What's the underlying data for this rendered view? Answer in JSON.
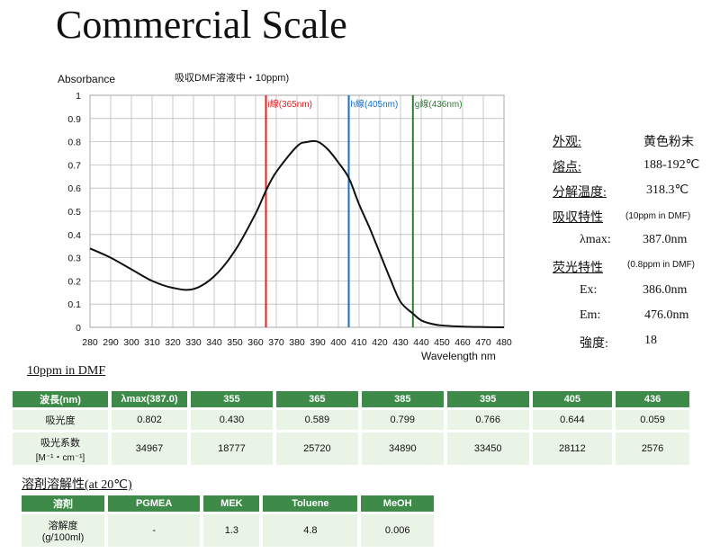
{
  "title": "Commercial Scale",
  "chart_data": {
    "type": "line",
    "title": "吸収DMF溶液中・10ppm)",
    "ylabel": "Absorbance",
    "xlabel": "Wavelength nm",
    "xlim": [
      280,
      480
    ],
    "ylim": [
      0,
      1
    ],
    "x_ticks": [
      "280",
      "290",
      "300",
      "310",
      "320",
      "330",
      "340",
      "350",
      "360",
      "370",
      "380",
      "390",
      "400",
      "410",
      "420",
      "430",
      "440",
      "450",
      "460",
      "470",
      "480"
    ],
    "y_ticks": [
      "0",
      "0.1",
      "0.2",
      "0.3",
      "0.4",
      "0.5",
      "0.6",
      "0.7",
      "0.8",
      "0.9",
      "1"
    ],
    "grid": true,
    "series": [
      {
        "x": [
          280,
          290,
          300,
          310,
          320,
          330,
          340,
          350,
          360,
          365,
          370,
          380,
          385,
          390,
          395,
          400,
          405,
          410,
          415,
          420,
          425,
          430,
          436,
          440,
          445,
          450,
          460,
          470,
          480
        ],
        "y": [
          0.34,
          0.3,
          0.25,
          0.2,
          0.17,
          0.165,
          0.22,
          0.33,
          0.49,
          0.589,
          0.67,
          0.78,
          0.799,
          0.8,
          0.766,
          0.71,
          0.644,
          0.53,
          0.43,
          0.32,
          0.21,
          0.11,
          0.059,
          0.03,
          0.015,
          0.008,
          0.003,
          0.001,
          0.0
        ]
      }
    ],
    "annotations": [
      {
        "x": 365,
        "label": "i線(365nm)",
        "color": "#e02020"
      },
      {
        "x": 405,
        "label": "h線(405nm)",
        "color": "#1a6fc4"
      },
      {
        "x": 436,
        "label": "g線(436nm)",
        "color": "#2e7d32"
      }
    ],
    "line_color": "#111111"
  },
  "properties": {
    "appearance": {
      "label": "外观:",
      "value": "黄色粉末"
    },
    "melting": {
      "label": "熔点:",
      "value": "188-192℃"
    },
    "decomp": {
      "label": "分解温度:",
      "value": "318.3℃"
    },
    "absorption": {
      "label": "吸収特性",
      "note": "(10ppm in DMF)"
    },
    "lambda_max": {
      "label": "λmax:",
      "value": "387.0nm"
    },
    "fluorescence": {
      "label": "荧光特性",
      "note": "(0.8ppm in DMF)"
    },
    "ex": {
      "label": "Ex:",
      "value": "386.0nm"
    },
    "em": {
      "label": "Em:",
      "value": "476.0nm"
    },
    "intensity": {
      "label": "強度:",
      "value": "18"
    }
  },
  "table1": {
    "caption": "10ppm in DMF",
    "header": [
      "波長(nm)",
      "λmax(387.0)",
      "355",
      "365",
      "385",
      "395",
      "405",
      "436"
    ],
    "rows": [
      {
        "label": "吸光度",
        "values": [
          "0.802",
          "0.430",
          "0.589",
          "0.799",
          "0.766",
          "0.644",
          "0.059"
        ]
      },
      {
        "label": "吸光系数",
        "label2": "[M⁻¹・cm⁻¹]",
        "values": [
          "34967",
          "18777",
          "25720",
          "34890",
          "33450",
          "28112",
          "2576"
        ]
      }
    ]
  },
  "table2": {
    "caption": "溶剤溶解性(at 20℃)",
    "header": [
      "溶剤",
      "PGMEA",
      "MEK",
      "Toluene",
      "MeOH"
    ],
    "rows": [
      {
        "label": "溶解度",
        "label2": "(g/100ml)",
        "values": [
          "-",
          "1.3",
          "4.8",
          "0.006"
        ]
      }
    ]
  },
  "colors": {
    "header_green": "#3e8b49",
    "cell_green": "#e9f4e7"
  }
}
